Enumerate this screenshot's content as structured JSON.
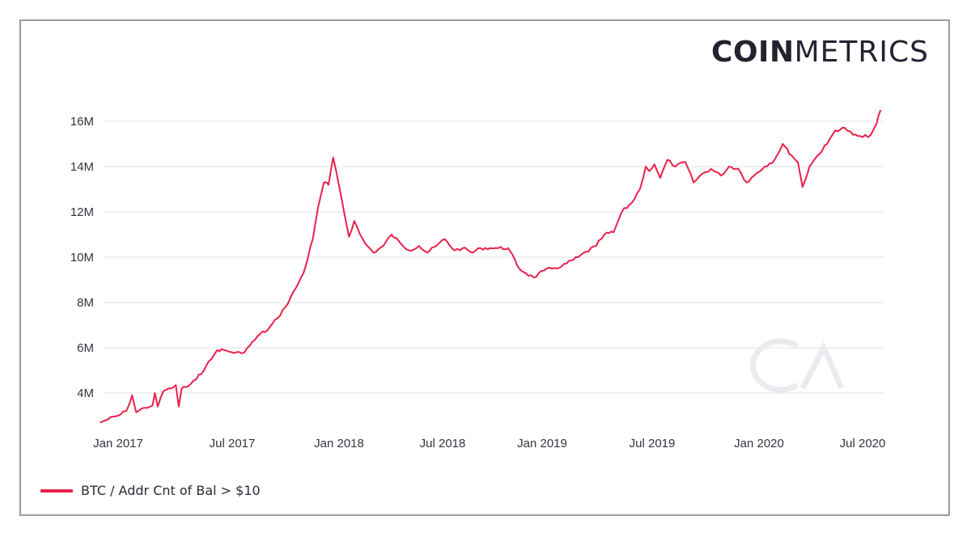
{
  "brand": {
    "logo_bold": "COIN",
    "logo_light": "METRICS",
    "watermark": "CM"
  },
  "colors": {
    "series": "#e8214b",
    "grid": "#ececf0",
    "text": "#333340",
    "frame": "#9a9aa6",
    "watermark": "#ebebef"
  },
  "legend": {
    "items": [
      {
        "label": "BTC / Addr Cnt of Bal > $10",
        "color": "#e8214b"
      }
    ]
  },
  "chart_data": {
    "type": "line",
    "title": "",
    "xlabel": "",
    "ylabel": "",
    "ylim": [
      2.5,
      17
    ],
    "y_unit": "M",
    "grid": true,
    "legend_position": "bottom-left",
    "y_ticks": [
      "4M",
      "6M",
      "8M",
      "10M",
      "12M",
      "14M",
      "16M"
    ],
    "x_ticks": [
      "Jan 2017",
      "Jul 2017",
      "Jan 2018",
      "Jul 2018",
      "Jan 2019",
      "Jul 2019",
      "Jan 2020",
      "Jul 2020"
    ],
    "series": [
      {
        "name": "BTC / Addr Cnt of Bal > $10",
        "x": [
          "2016-12-01",
          "2016-12-15",
          "2017-01-01",
          "2017-01-15",
          "2017-01-25",
          "2017-02-01",
          "2017-02-15",
          "2017-03-01",
          "2017-03-05",
          "2017-03-10",
          "2017-03-20",
          "2017-04-01",
          "2017-04-10",
          "2017-04-15",
          "2017-04-20",
          "2017-05-01",
          "2017-05-15",
          "2017-06-01",
          "2017-06-10",
          "2017-06-20",
          "2017-07-01",
          "2017-07-15",
          "2017-08-01",
          "2017-08-15",
          "2017-09-01",
          "2017-09-15",
          "2017-10-01",
          "2017-10-15",
          "2017-11-01",
          "2017-11-15",
          "2017-12-01",
          "2017-12-10",
          "2017-12-20",
          "2017-12-28",
          "2018-01-05",
          "2018-01-10",
          "2018-01-20",
          "2018-02-01",
          "2018-02-10",
          "2018-02-20",
          "2018-03-01",
          "2018-03-15",
          "2018-04-01",
          "2018-04-15",
          "2018-05-01",
          "2018-05-15",
          "2018-06-01",
          "2018-06-15",
          "2018-07-01",
          "2018-07-15",
          "2018-08-01",
          "2018-08-15",
          "2018-09-01",
          "2018-09-15",
          "2018-10-01",
          "2018-10-15",
          "2018-11-01",
          "2018-11-20",
          "2018-12-01",
          "2018-12-15",
          "2019-01-01",
          "2019-01-15",
          "2019-02-01",
          "2019-03-01",
          "2019-04-01",
          "2019-04-15",
          "2019-05-01",
          "2019-05-15",
          "2019-06-01",
          "2019-06-15",
          "2019-06-25",
          "2019-07-01",
          "2019-07-10",
          "2019-07-20",
          "2019-08-01",
          "2019-08-15",
          "2019-09-01",
          "2019-09-15",
          "2019-10-01",
          "2019-10-15",
          "2019-11-01",
          "2019-11-15",
          "2019-12-01",
          "2019-12-15",
          "2020-01-01",
          "2020-01-15",
          "2020-02-01",
          "2020-02-15",
          "2020-03-01",
          "2020-03-12",
          "2020-03-20",
          "2020-04-01",
          "2020-04-15",
          "2020-05-01",
          "2020-05-15",
          "2020-06-01",
          "2020-06-15",
          "2020-07-01",
          "2020-07-15",
          "2020-07-25",
          "2020-08-01"
        ],
        "values": [
          2.7,
          2.85,
          3.0,
          3.2,
          3.9,
          3.15,
          3.35,
          3.45,
          4.0,
          3.4,
          4.1,
          4.2,
          4.35,
          3.4,
          4.2,
          4.3,
          4.6,
          5.2,
          5.5,
          5.9,
          5.9,
          5.8,
          5.75,
          6.1,
          6.6,
          6.8,
          7.3,
          7.8,
          8.6,
          9.3,
          10.8,
          12.2,
          13.3,
          13.2,
          14.4,
          13.8,
          12.5,
          10.9,
          11.6,
          11.0,
          10.6,
          10.2,
          10.5,
          11.0,
          10.6,
          10.3,
          10.5,
          10.2,
          10.5,
          10.8,
          10.3,
          10.4,
          10.2,
          10.4,
          10.4,
          10.4,
          10.4,
          9.5,
          9.3,
          9.1,
          9.4,
          9.5,
          9.6,
          10.0,
          10.5,
          11.0,
          11.1,
          12.0,
          12.4,
          13.0,
          14.0,
          13.8,
          14.1,
          13.5,
          14.3,
          14.0,
          14.2,
          13.3,
          13.7,
          13.9,
          13.6,
          14.0,
          13.9,
          13.3,
          13.7,
          14.0,
          14.3,
          15.0,
          14.5,
          14.2,
          13.1,
          14.0,
          14.5,
          15.0,
          15.6,
          15.7,
          15.4,
          15.3,
          15.4,
          15.9,
          16.5
        ]
      }
    ]
  }
}
